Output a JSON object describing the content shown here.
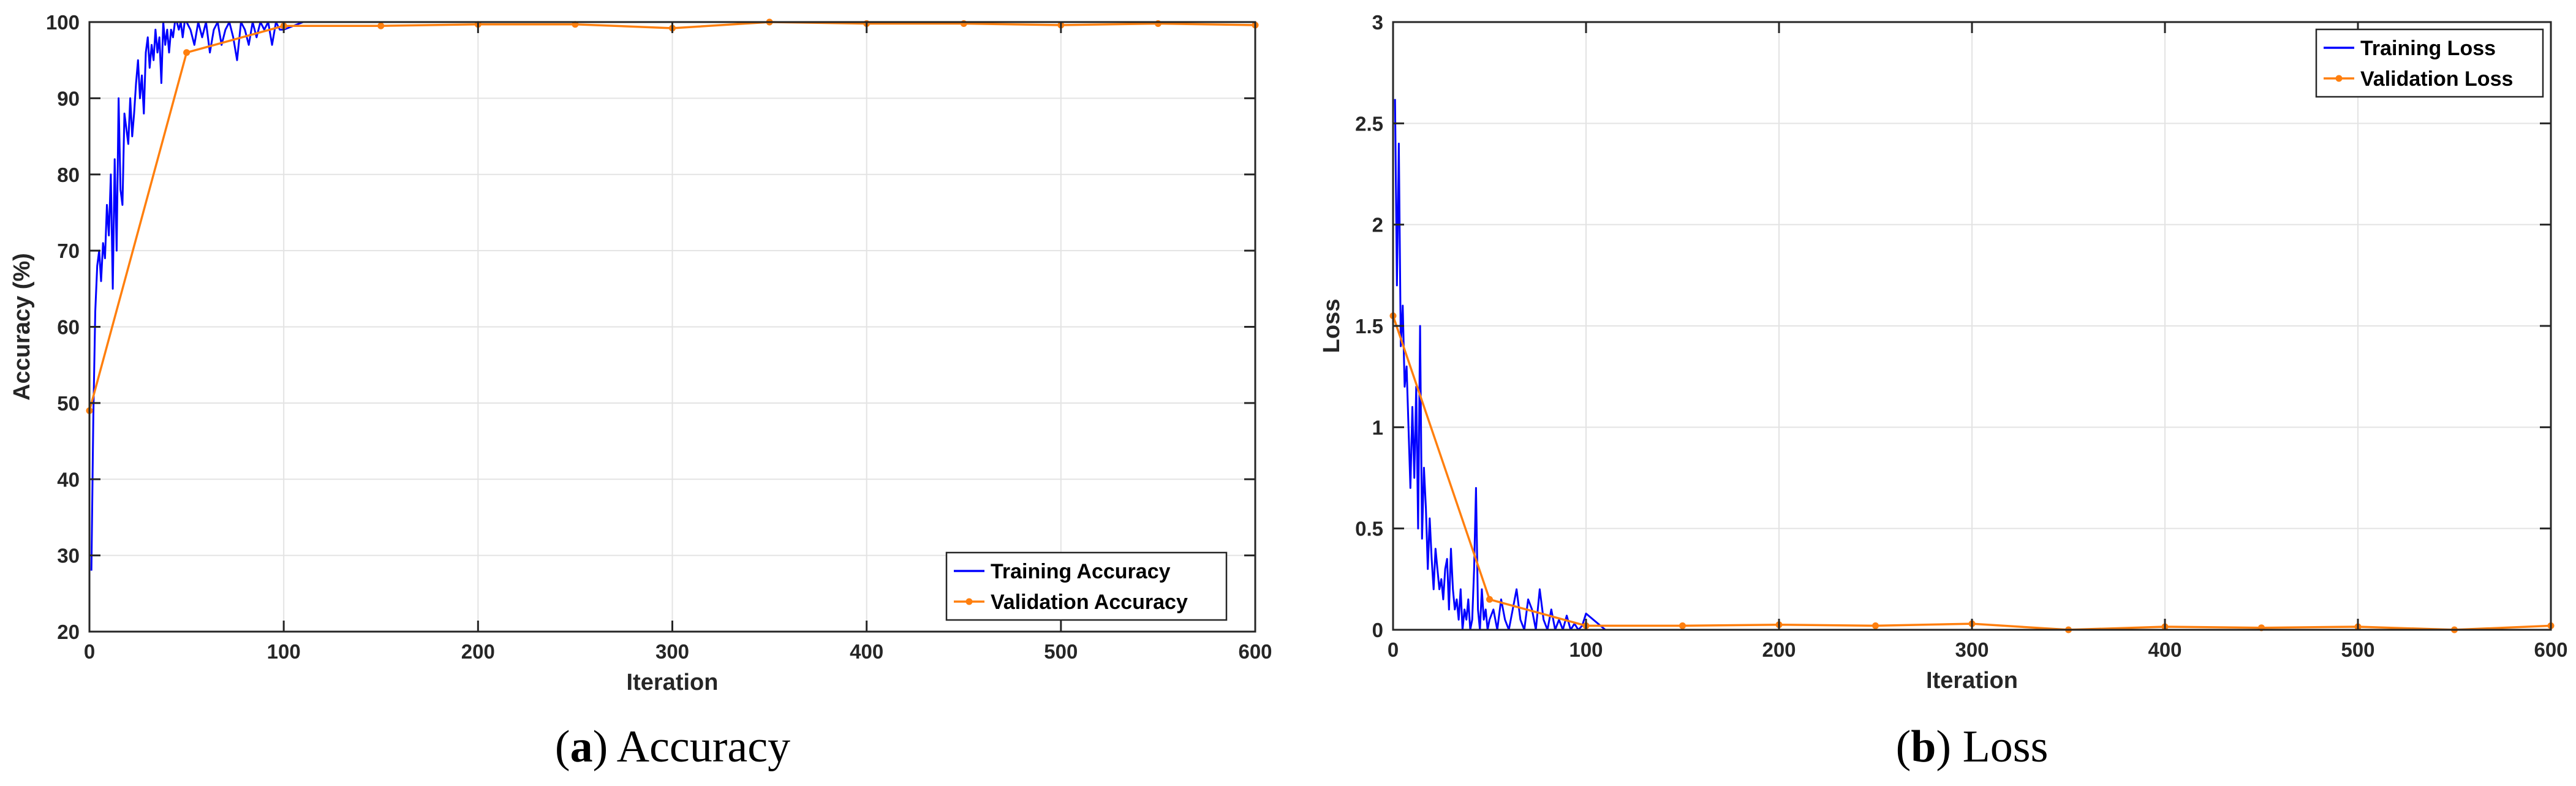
{
  "chart_data": [
    {
      "type": "line",
      "caption_letter": "a",
      "caption_text": "Accuracy",
      "xlabel": "Iteration",
      "ylabel": "Accuracy (%)",
      "xlim": [
        0,
        600
      ],
      "ylim": [
        20,
        100
      ],
      "xticks": [
        0,
        100,
        200,
        300,
        400,
        500,
        600
      ],
      "yticks": [
        20,
        30,
        40,
        50,
        60,
        70,
        80,
        90,
        100
      ],
      "grid": true,
      "legend_position": "bottom-right",
      "series": [
        {
          "name": "Training Accuracy",
          "color": "#0000ff",
          "marker": "none",
          "x": [
            1,
            2,
            3,
            4,
            5,
            6,
            7,
            8,
            9,
            10,
            11,
            12,
            13,
            14,
            15,
            16,
            17,
            18,
            19,
            20,
            21,
            22,
            23,
            24,
            25,
            26,
            27,
            28,
            29,
            30,
            31,
            32,
            33,
            34,
            35,
            36,
            37,
            38,
            39,
            40,
            41,
            42,
            43,
            44,
            45,
            46,
            47,
            48,
            49,
            50,
            52,
            54,
            56,
            58,
            60,
            62,
            64,
            66,
            68,
            70,
            72,
            74,
            76,
            78,
            80,
            82,
            84,
            86,
            88,
            90,
            92,
            94,
            96,
            98,
            100,
            110,
            120,
            130,
            140,
            150,
            160,
            180,
            200,
            250,
            300,
            350,
            400,
            450,
            500,
            550,
            600
          ],
          "y": [
            28,
            48,
            62,
            68,
            70,
            66,
            71,
            69,
            76,
            72,
            80,
            65,
            82,
            70,
            90,
            78,
            76,
            88,
            86,
            84,
            90,
            85,
            88,
            92,
            95,
            90,
            93,
            88,
            96,
            98,
            94,
            97,
            95,
            99,
            96,
            98,
            92,
            100,
            97,
            99,
            96,
            99,
            98,
            100,
            100,
            99,
            100,
            98,
            100,
            100,
            99,
            97,
            100,
            98,
            100,
            96,
            99,
            100,
            97,
            99,
            100,
            98,
            95,
            100,
            99,
            97,
            100,
            98,
            100,
            99,
            100,
            97,
            100,
            99,
            99,
            100,
            100,
            100,
            100,
            100,
            100,
            100,
            100,
            100,
            100,
            100,
            100,
            100,
            100,
            100,
            100
          ]
        },
        {
          "name": "Validation Accuracy",
          "color": "#ff7f0e",
          "marker": "dot",
          "x": [
            0,
            50,
            100,
            150,
            200,
            250,
            300,
            350,
            400,
            450,
            500,
            550,
            600
          ],
          "y": [
            49,
            96,
            99.5,
            99.5,
            99.7,
            99.7,
            99.2,
            100,
            99.8,
            99.8,
            99.6,
            99.8,
            99.6
          ]
        }
      ]
    },
    {
      "type": "line",
      "caption_letter": "b",
      "caption_text": "Loss",
      "xlabel": "Iteration",
      "ylabel": "Loss",
      "xlim": [
        0,
        600
      ],
      "ylim": [
        0,
        3
      ],
      "xticks": [
        0,
        100,
        200,
        300,
        400,
        500,
        600
      ],
      "yticks": [
        0,
        0.5,
        1,
        1.5,
        2,
        2.5,
        3
      ],
      "grid": true,
      "legend_position": "top-right",
      "series": [
        {
          "name": "Training Loss",
          "color": "#0000ff",
          "marker": "none",
          "x": [
            1,
            2,
            3,
            4,
            5,
            6,
            7,
            8,
            9,
            10,
            11,
            12,
            13,
            14,
            15,
            16,
            17,
            18,
            19,
            20,
            21,
            22,
            23,
            24,
            25,
            26,
            27,
            28,
            29,
            30,
            31,
            32,
            33,
            34,
            35,
            36,
            37,
            38,
            39,
            40,
            41,
            42,
            43,
            44,
            45,
            46,
            47,
            48,
            49,
            50,
            52,
            54,
            56,
            58,
            60,
            62,
            64,
            66,
            68,
            70,
            72,
            74,
            76,
            78,
            80,
            82,
            84,
            86,
            88,
            90,
            92,
            94,
            96,
            98,
            100,
            110,
            120,
            130,
            140,
            150,
            160,
            180,
            200,
            250,
            300,
            350,
            400,
            450,
            500,
            550,
            600
          ],
          "y": [
            2.62,
            1.7,
            2.4,
            1.4,
            1.6,
            1.2,
            1.3,
            1.0,
            0.7,
            1.1,
            0.75,
            1.2,
            0.5,
            1.5,
            0.45,
            0.8,
            0.6,
            0.3,
            0.55,
            0.35,
            0.2,
            0.4,
            0.3,
            0.2,
            0.25,
            0.15,
            0.3,
            0.35,
            0.1,
            0.4,
            0.2,
            0.1,
            0.15,
            0.05,
            0.2,
            0.0,
            0.1,
            0.05,
            0.15,
            0.0,
            0.05,
            0.3,
            0.7,
            0.1,
            0.0,
            0.2,
            0.05,
            0.1,
            0.0,
            0.05,
            0.1,
            0.0,
            0.15,
            0.05,
            0.0,
            0.1,
            0.2,
            0.05,
            0.0,
            0.15,
            0.1,
            0.0,
            0.2,
            0.05,
            0.0,
            0.1,
            0.0,
            0.05,
            0.0,
            0.07,
            0.0,
            0.03,
            0.0,
            0.02,
            0.08,
            0.0,
            0.0,
            0.0,
            0.0,
            0.0,
            0.0,
            0.0,
            0.0,
            0.0,
            0.0,
            0.0,
            0.0,
            0.0,
            0.0,
            0.0,
            0.0
          ]
        },
        {
          "name": "Validation Loss",
          "color": "#ff7f0e",
          "marker": "dot",
          "x": [
            0,
            50,
            100,
            150,
            200,
            250,
            300,
            350,
            400,
            450,
            500,
            550,
            600
          ],
          "y": [
            1.55,
            0.15,
            0.02,
            0.02,
            0.025,
            0.02,
            0.03,
            0.0,
            0.015,
            0.01,
            0.015,
            0.0,
            0.02
          ]
        }
      ]
    }
  ]
}
